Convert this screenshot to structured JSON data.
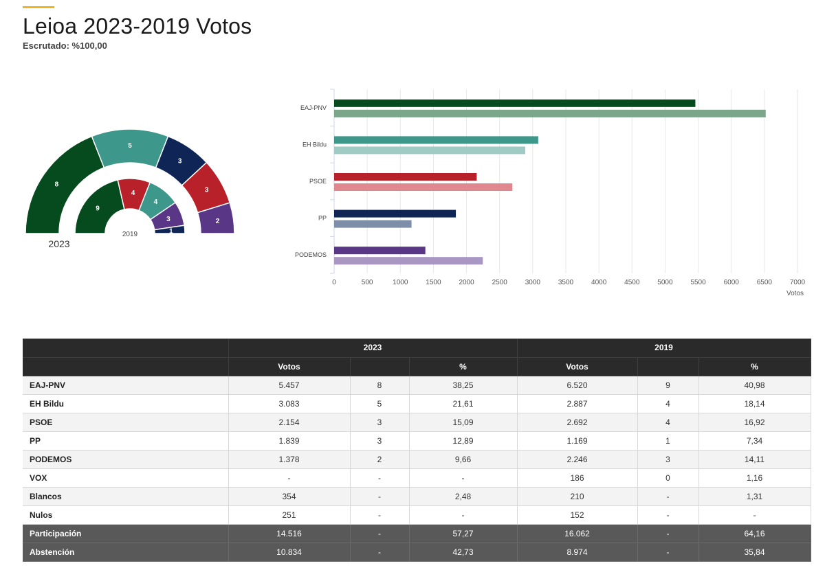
{
  "header": {
    "title": "Leioa 2023-2019 Votos",
    "subtitle": "Escrutado: %100,00"
  },
  "colors": {
    "accent": "#f2b41c",
    "table_header": "#2a2a2a",
    "table_dark_row": "#595959"
  },
  "chart_data": [
    {
      "type": "pie",
      "variant": "semicircle-donut",
      "rings": [
        {
          "label": "2023",
          "seats": [
            {
              "party": "EAJ-PNV",
              "value": 8,
              "color": "#064b1e"
            },
            {
              "party": "EH Bildu",
              "value": 5,
              "color": "#3d978a"
            },
            {
              "party": "PP",
              "value": 3,
              "color": "#0e2555"
            },
            {
              "party": "PSOE",
              "value": 3,
              "color": "#b8202a"
            },
            {
              "party": "PODEMOS",
              "value": 2,
              "color": "#5a3786"
            }
          ]
        },
        {
          "label": "2019",
          "seats": [
            {
              "party": "EAJ-PNV",
              "value": 9,
              "color": "#064b1e"
            },
            {
              "party": "PSOE",
              "value": 4,
              "color": "#b8202a"
            },
            {
              "party": "EH Bildu",
              "value": 4,
              "color": "#3d978a"
            },
            {
              "party": "PODEMOS",
              "value": 3,
              "color": "#5a3786"
            },
            {
              "party": "PP",
              "value": 1,
              "color": "#0e2555"
            }
          ]
        }
      ]
    },
    {
      "type": "bar",
      "orientation": "horizontal",
      "categories": [
        "EAJ-PNV",
        "EH Bildu",
        "PSOE",
        "PP",
        "PODEMOS"
      ],
      "series": [
        {
          "year": "2023",
          "values": [
            5457,
            3083,
            2154,
            1839,
            1378
          ],
          "colors": [
            "#064b1e",
            "#3d978a",
            "#b8202a",
            "#0e2555",
            "#5a3786"
          ]
        },
        {
          "year": "2019",
          "values": [
            6520,
            2887,
            2692,
            1169,
            2246
          ],
          "colors": [
            "#7ba689",
            "#9fcbc4",
            "#e0888d",
            "#7c8ea8",
            "#a996c3"
          ]
        }
      ],
      "xlabel": "Votos",
      "xlim": [
        0,
        7000
      ],
      "xticks": [
        "0",
        "500",
        "1000",
        "1500",
        "2000",
        "2500",
        "3000",
        "3500",
        "4000",
        "4500",
        "5000",
        "5500",
        "6000",
        "6500",
        "7000"
      ],
      "grid": true
    }
  ],
  "table": {
    "year_headers": [
      "2023",
      "2019"
    ],
    "col_headers": [
      "Votos",
      "",
      "%",
      "Votos",
      "",
      "%"
    ],
    "rows": [
      {
        "label": "EAJ-PNV",
        "cells": [
          "5.457",
          "8",
          "38,25",
          "6.520",
          "9",
          "40,98"
        ],
        "style": "odd"
      },
      {
        "label": "EH Bildu",
        "cells": [
          "3.083",
          "5",
          "21,61",
          "2.887",
          "4",
          "18,14"
        ],
        "style": "even"
      },
      {
        "label": "PSOE",
        "cells": [
          "2.154",
          "3",
          "15,09",
          "2.692",
          "4",
          "16,92"
        ],
        "style": "odd"
      },
      {
        "label": "PP",
        "cells": [
          "1.839",
          "3",
          "12,89",
          "1.169",
          "1",
          "7,34"
        ],
        "style": "even"
      },
      {
        "label": "PODEMOS",
        "cells": [
          "1.378",
          "2",
          "9,66",
          "2.246",
          "3",
          "14,11"
        ],
        "style": "odd"
      },
      {
        "label": "VOX",
        "cells": [
          "-",
          "-",
          "-",
          "186",
          "0",
          "1,16"
        ],
        "style": "even"
      },
      {
        "label": "Blancos",
        "cells": [
          "354",
          "-",
          "2,48",
          "210",
          "-",
          "1,31"
        ],
        "style": "odd"
      },
      {
        "label": "Nulos",
        "cells": [
          "251",
          "-",
          "-",
          "152",
          "-",
          "-"
        ],
        "style": "even"
      },
      {
        "label": "Participación",
        "cells": [
          "14.516",
          "-",
          "57,27",
          "16.062",
          "-",
          "64,16"
        ],
        "style": "dark"
      },
      {
        "label": "Abstención",
        "cells": [
          "10.834",
          "-",
          "42,73",
          "8.974",
          "-",
          "35,84"
        ],
        "style": "dark"
      }
    ]
  }
}
